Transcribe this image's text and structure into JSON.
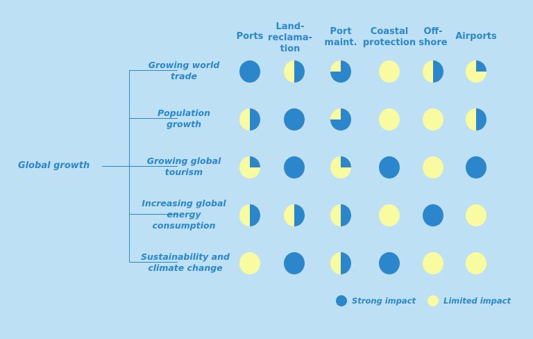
{
  "root_label": "Global growth",
  "columns": [
    "Ports",
    "Land-\nreclama-\ntion",
    "Port\nmaint.",
    "Coastal\nprotection",
    "Off-\nshore",
    "Airports"
  ],
  "rows": [
    {
      "label": "Growing world\ntrade",
      "impacts": [
        1,
        0.5,
        0.75,
        0,
        0.5,
        0.25
      ]
    },
    {
      "label": "Population\ngrowth",
      "impacts": [
        0.5,
        1,
        0.75,
        0,
        0,
        0.5
      ]
    },
    {
      "label": "Growing global\ntourism",
      "impacts": [
        0.25,
        1,
        0.25,
        1,
        0,
        1
      ]
    },
    {
      "label": "Increasing global\nenergy\nconsumption",
      "impacts": [
        0.5,
        0.5,
        0.5,
        0,
        1,
        0
      ]
    },
    {
      "label": "Sustainability and\nclimate change",
      "impacts": [
        0,
        1,
        0.5,
        1,
        0,
        0
      ]
    }
  ],
  "legend": {
    "strong": "Strong impact",
    "limited": "Limited impact"
  },
  "colors": {
    "background": "#bde0f5",
    "strong": "#2b86cc",
    "limited": "#f8fba0",
    "text": "#2b86cc"
  }
}
